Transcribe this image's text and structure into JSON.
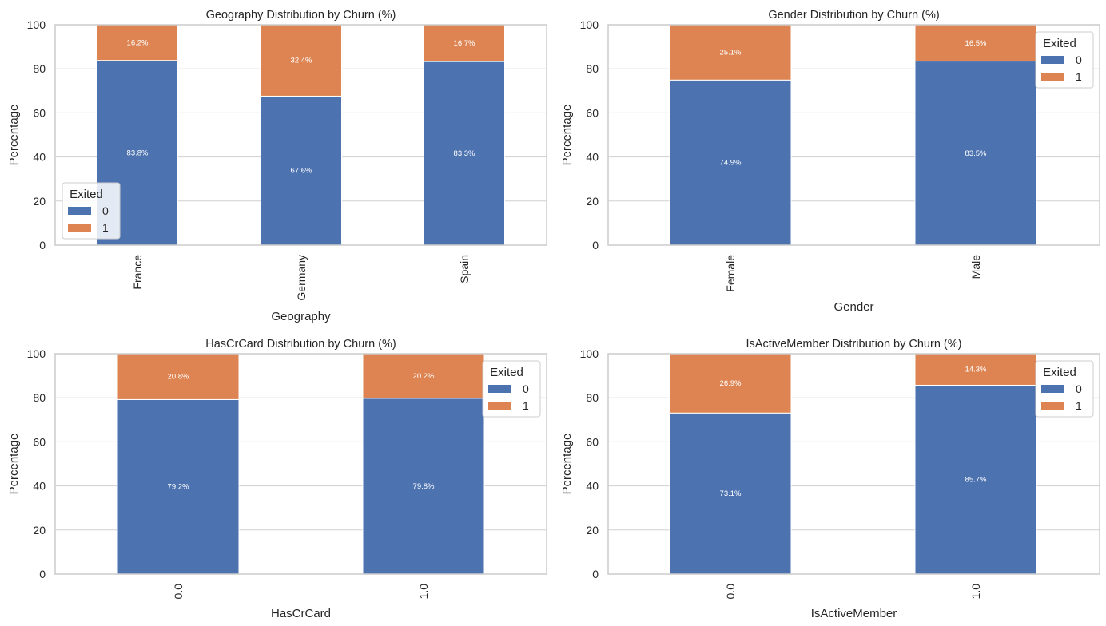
{
  "figure": {
    "colors": {
      "exited_0": "#4c72b0",
      "exited_1": "#dd8452",
      "grid": "#d0d0d0",
      "spine": "#cccccc"
    }
  },
  "chart_data": [
    {
      "type": "bar",
      "stacked": true,
      "title": "Geography Distribution by Churn (%)",
      "xlabel": "Geography",
      "ylabel": "Percentage",
      "categories": [
        "France",
        "Germany",
        "Spain"
      ],
      "series": [
        {
          "name": "0",
          "values": [
            83.8,
            67.6,
            83.3
          ],
          "labels": [
            "83.8%",
            "67.6%",
            "83.3%"
          ]
        },
        {
          "name": "1",
          "values": [
            16.2,
            32.4,
            16.7
          ],
          "labels": [
            "16.2%",
            "32.4%",
            "16.7%"
          ]
        }
      ],
      "ylim": [
        0,
        100
      ],
      "yticks": [
        "0",
        "20",
        "40",
        "60",
        "80",
        "100"
      ],
      "grid": true,
      "legend": {
        "title": "Exited",
        "entries": [
          "0",
          "1"
        ],
        "placement": "lower-left"
      }
    },
    {
      "type": "bar",
      "stacked": true,
      "title": "Gender Distribution by Churn (%)",
      "xlabel": "Gender",
      "ylabel": "Percentage",
      "categories": [
        "Female",
        "Male"
      ],
      "series": [
        {
          "name": "0",
          "values": [
            74.9,
            83.5
          ],
          "labels": [
            "74.9%",
            "83.5%"
          ]
        },
        {
          "name": "1",
          "values": [
            25.1,
            16.5
          ],
          "labels": [
            "25.1%",
            "16.5%"
          ]
        }
      ],
      "ylim": [
        0,
        100
      ],
      "yticks": [
        "0",
        "20",
        "40",
        "60",
        "80",
        "100"
      ],
      "grid": true,
      "legend": {
        "title": "Exited",
        "entries": [
          "0",
          "1"
        ],
        "placement": "upper-right"
      }
    },
    {
      "type": "bar",
      "stacked": true,
      "title": "HasCrCard Distribution by Churn (%)",
      "xlabel": "HasCrCard",
      "ylabel": "Percentage",
      "categories": [
        "0.0",
        "1.0"
      ],
      "series": [
        {
          "name": "0",
          "values": [
            79.2,
            79.8
          ],
          "labels": [
            "79.2%",
            "79.8%"
          ]
        },
        {
          "name": "1",
          "values": [
            20.8,
            20.2
          ],
          "labels": [
            "20.8%",
            "20.2%"
          ]
        }
      ],
      "ylim": [
        0,
        100
      ],
      "yticks": [
        "0",
        "20",
        "40",
        "60",
        "80",
        "100"
      ],
      "grid": true,
      "legend": {
        "title": "Exited",
        "entries": [
          "0",
          "1"
        ],
        "placement": "upper-right"
      }
    },
    {
      "type": "bar",
      "stacked": true,
      "title": "IsActiveMember Distribution by Churn (%)",
      "xlabel": "IsActiveMember",
      "ylabel": "Percentage",
      "categories": [
        "0.0",
        "1.0"
      ],
      "series": [
        {
          "name": "0",
          "values": [
            73.1,
            85.7
          ],
          "labels": [
            "73.1%",
            "85.7%"
          ]
        },
        {
          "name": "1",
          "values": [
            26.9,
            14.3
          ],
          "labels": [
            "26.9%",
            "14.3%"
          ]
        }
      ],
      "ylim": [
        0,
        100
      ],
      "yticks": [
        "0",
        "20",
        "40",
        "60",
        "80",
        "100"
      ],
      "grid": true,
      "legend": {
        "title": "Exited",
        "entries": [
          "0",
          "1"
        ],
        "placement": "upper-right"
      }
    }
  ]
}
